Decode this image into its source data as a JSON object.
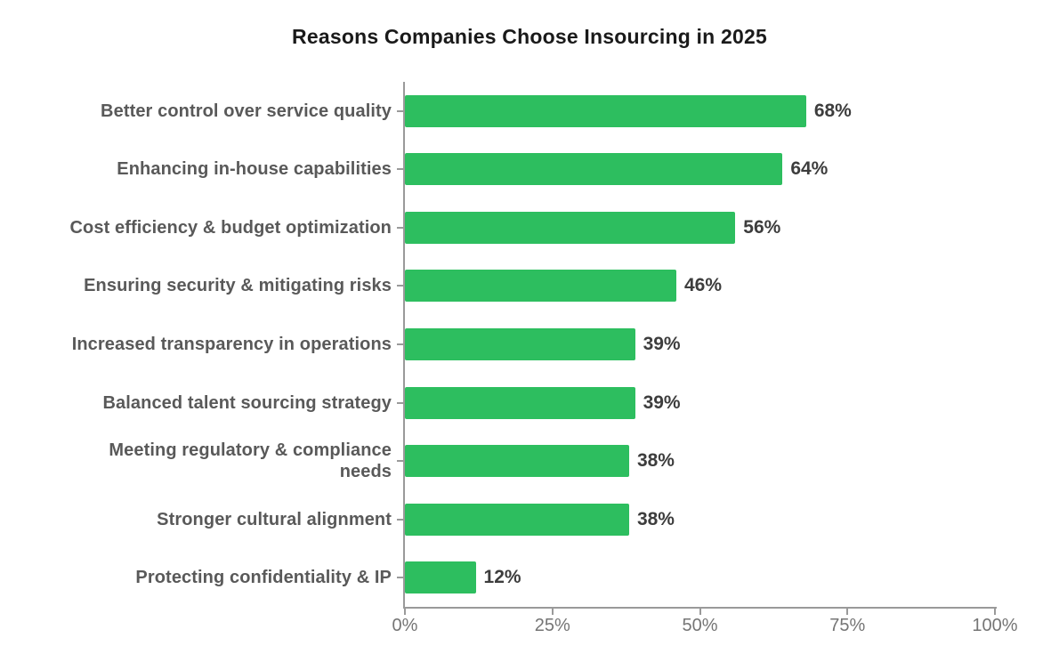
{
  "chart_data": {
    "type": "bar",
    "orientation": "horizontal",
    "title": "Reasons Companies Choose Insourcing in 2025",
    "categories": [
      "Better control over service quality",
      "Enhancing in-house capabilities",
      "Cost efficiency & budget optimization",
      "Ensuring security & mitigating risks",
      "Increased transparency in operations",
      "Balanced talent sourcing strategy",
      "Meeting regulatory & compliance needs",
      "Stronger cultural alignment",
      "Protecting confidentiality & IP"
    ],
    "values": [
      68,
      64,
      56,
      46,
      39,
      39,
      38,
      38,
      12
    ],
    "value_labels": [
      "68%",
      "64%",
      "56%",
      "46%",
      "39%",
      "39%",
      "38%",
      "38%",
      "12%"
    ],
    "xlabel": "",
    "ylabel": "",
    "xlim": [
      0,
      100
    ],
    "x_tick_values": [
      0,
      25,
      50,
      75,
      100
    ],
    "x_tick_labels": [
      "0%",
      "25%",
      "50%",
      "75%",
      "100%"
    ],
    "grid": false,
    "legend": false
  },
  "colors": {
    "bar": "#2dbe5f",
    "title": "#1a1a1a",
    "category_label": "#595959",
    "value_label": "#3d3d3d",
    "axis_tick_label": "#757575",
    "axis_line": "#9a9a9a"
  }
}
